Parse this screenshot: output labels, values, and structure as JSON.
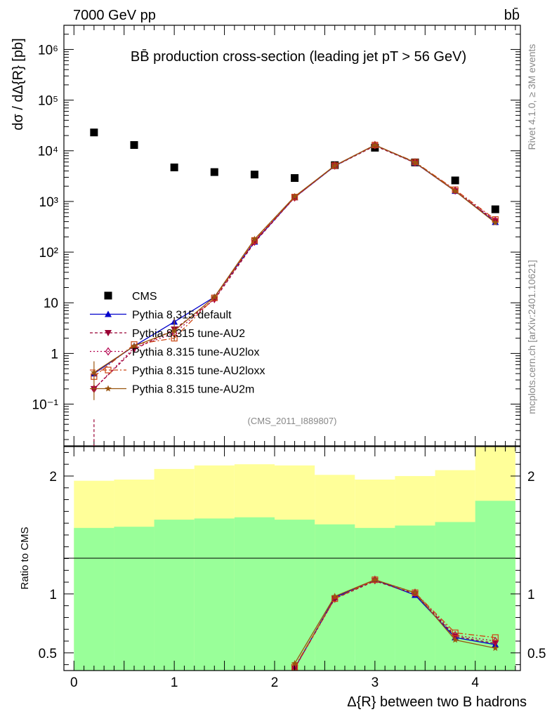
{
  "header": {
    "left": "7000 GeV pp",
    "right": "bb̄"
  },
  "side_labels": {
    "top": "Rivet 4.1.0, ≥ 3M events",
    "bottom": "mcplots.cern.ch [arXiv:2401.10621]"
  },
  "analysis_id": "(CMS_2011_I889807)",
  "colors": {
    "cms": "#000000",
    "default": "#0000cc",
    "au2": "#990033",
    "au2lox": "#b3004d",
    "au2loxx": "#cc4411",
    "au2m": "#99550f",
    "band_outer": "#ffff99",
    "band_inner": "#99ff99"
  },
  "chart_data": [
    {
      "type": "scatter",
      "title": "BB̄ production cross-section (leading jet pT > 56 GeV)",
      "ylabel": "dσ / dΔ{R} [pb]",
      "xlabel": "",
      "yscale": "log",
      "ylim": [
        0.015,
        3000000
      ],
      "xlim": [
        -0.1,
        4.45
      ],
      "ytick_labels": [
        "10⁻¹",
        "1",
        "10",
        "10²",
        "10³",
        "10⁴",
        "10⁵",
        "10⁶"
      ],
      "x": [
        0.2,
        0.6,
        1.0,
        1.4,
        1.8,
        2.2,
        2.6,
        3.0,
        3.4,
        3.8,
        4.2
      ],
      "series": [
        {
          "name": "CMS",
          "key": "cms",
          "values": [
            23000,
            13000,
            4700,
            3800,
            3400,
            2900,
            5200,
            11500,
            5900,
            2600,
            700
          ]
        },
        {
          "name": "Pythia 8.315 default",
          "key": "default",
          "values": [
            0.4,
            1.4,
            4.2,
            13,
            160,
            1200,
            5000,
            13000,
            5800,
            1600,
            390
          ]
        },
        {
          "name": "Pythia 8.315 tune-AU2",
          "key": "au2",
          "values": [
            0.2,
            1.2,
            3.0,
            11.5,
            155,
            1200,
            5000,
            12500,
            5800,
            1600,
            410
          ]
        },
        {
          "name": "Pythia 8.315 tune-AU2lox",
          "key": "au2lox",
          "values": [
            0.2,
            1.3,
            2.5,
            12,
            165,
            1200,
            5100,
            13000,
            5900,
            1650,
            420
          ]
        },
        {
          "name": "Pythia 8.315 tune-AU2loxx",
          "key": "au2loxx",
          "values": [
            0.35,
            1.5,
            2.0,
            12.5,
            170,
            1220,
            5100,
            13000,
            6000,
            1700,
            440
          ]
        },
        {
          "name": "Pythia 8.315 tune-AU2m",
          "key": "au2m",
          "values": [
            0.42,
            1.4,
            2.8,
            13,
            180,
            1250,
            5100,
            13000,
            5900,
            1600,
            380
          ]
        }
      ]
    },
    {
      "type": "line",
      "title": "",
      "ylabel": "Ratio to CMS",
      "xlabel": "Δ{R} between two B hadrons",
      "ylim": [
        0.35,
        2.25
      ],
      "xlim": [
        -0.1,
        4.45
      ],
      "yticks": [
        0.5,
        1,
        2
      ],
      "ytick_labels": [
        "0.5",
        "1",
        "2"
      ],
      "xticks": [
        0,
        1,
        2,
        3,
        4
      ],
      "xtick_labels": [
        "0",
        "1",
        "2",
        "3",
        "4"
      ],
      "band_edges": [
        0,
        0.4,
        0.8,
        1.2,
        1.6,
        2.0,
        2.4,
        2.8,
        3.2,
        3.6,
        4.0,
        4.4
      ],
      "band_outer": [
        [
          0.53,
          1.96
        ],
        [
          0.52,
          1.97
        ],
        [
          0.44,
          2.06
        ],
        [
          0.41,
          2.09
        ],
        [
          0.39,
          2.1
        ],
        [
          0.41,
          2.09
        ],
        [
          0.48,
          2.01
        ],
        [
          0.53,
          1.97
        ],
        [
          0.5,
          2.0
        ],
        [
          0.44,
          2.05
        ],
        [
          0.3,
          2.3
        ]
      ],
      "band_inner": [
        [
          0.35,
          1.56
        ],
        [
          0.35,
          1.57
        ],
        [
          0.35,
          1.63
        ],
        [
          0.35,
          1.64
        ],
        [
          0.35,
          1.65
        ],
        [
          0.35,
          1.63
        ],
        [
          0.35,
          1.59
        ],
        [
          0.35,
          1.56
        ],
        [
          0.35,
          1.58
        ],
        [
          0.35,
          1.61
        ],
        [
          0.35,
          1.79
        ]
      ],
      "x": [
        2.2,
        2.6,
        3.0,
        3.4,
        3.8,
        4.2
      ],
      "series": [
        {
          "name": "Pythia 8.315 default",
          "key": "default",
          "values": [
            0.37,
            0.97,
            1.12,
            0.99,
            0.63,
            0.57
          ]
        },
        {
          "name": "Pythia 8.315 tune-AU2",
          "key": "au2",
          "values": [
            0.37,
            0.96,
            1.11,
            1.0,
            0.64,
            0.58
          ]
        },
        {
          "name": "Pythia 8.315 tune-AU2lox",
          "key": "au2lox",
          "values": [
            0.37,
            0.96,
            1.12,
            1.01,
            0.65,
            0.6
          ]
        },
        {
          "name": "Pythia 8.315 tune-AU2loxx",
          "key": "au2loxx",
          "values": [
            0.38,
            0.96,
            1.12,
            1.01,
            0.67,
            0.63
          ]
        },
        {
          "name": "Pythia 8.315 tune-AU2m",
          "key": "au2m",
          "values": [
            0.41,
            0.98,
            1.12,
            1.01,
            0.61,
            0.54
          ]
        }
      ]
    }
  ]
}
